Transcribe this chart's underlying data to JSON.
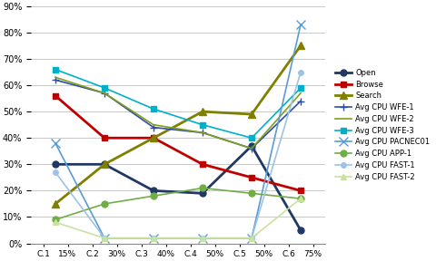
{
  "x_labels": [
    "C.1",
    "15%",
    "C.2",
    "30%",
    "C.3",
    "40%",
    "C.4",
    "50%",
    "C.5",
    "50%",
    "C.6",
    "75%"
  ],
  "x_positions": [
    0,
    1,
    2,
    3,
    4,
    5,
    6,
    7,
    8,
    9,
    10,
    11
  ],
  "data_positions": [
    0.5,
    2.5,
    4.5,
    6.5,
    8.5,
    10.5
  ],
  "series": {
    "Open": {
      "values": [
        0.3,
        0.3,
        0.2,
        0.19,
        0.37,
        0.05
      ],
      "color": "#1F3864",
      "marker": "o",
      "linewidth": 2.0,
      "markersize": 5
    },
    "Browse": {
      "values": [
        0.56,
        0.4,
        0.4,
        0.3,
        0.25,
        0.2
      ],
      "color": "#C00000",
      "marker": "s",
      "linewidth": 2.0,
      "markersize": 5
    },
    "Search": {
      "values": [
        0.15,
        0.3,
        0.4,
        0.5,
        0.49,
        0.75
      ],
      "color": "#7F7F00",
      "marker": "^",
      "linewidth": 2.0,
      "markersize": 6
    },
    "Avg CPU WFE-1": {
      "values": [
        0.62,
        0.57,
        0.44,
        0.42,
        0.36,
        0.54
      ],
      "color": "#2E4DA6",
      "marker": "+",
      "linewidth": 1.2,
      "markersize": 6
    },
    "Avg CPU WFE-2": {
      "values": [
        0.63,
        0.57,
        0.45,
        0.42,
        0.36,
        0.57
      ],
      "color": "#7F9F1C",
      "marker": null,
      "linewidth": 1.2,
      "markersize": 0
    },
    "Avg CPU WFE-3": {
      "values": [
        0.66,
        0.59,
        0.51,
        0.45,
        0.4,
        0.59
      ],
      "color": "#00B0C8",
      "marker": "s",
      "linewidth": 1.2,
      "markersize": 5
    },
    "Avg CPU PACNEC01": {
      "values": [
        0.38,
        0.02,
        0.02,
        0.02,
        0.02,
        0.83
      ],
      "color": "#5B9BD5",
      "marker": "x",
      "linewidth": 1.2,
      "markersize": 7
    },
    "Avg CPU APP-1": {
      "values": [
        0.09,
        0.15,
        0.18,
        0.21,
        0.19,
        0.17
      ],
      "color": "#70AD47",
      "marker": "o",
      "linewidth": 1.2,
      "markersize": 5
    },
    "Avg CPU FAST-1": {
      "values": [
        0.27,
        0.02,
        0.02,
        0.02,
        0.02,
        0.65
      ],
      "color": "#9DC3E6",
      "marker": "o",
      "linewidth": 1.2,
      "markersize": 4
    },
    "Avg CPU FAST-2": {
      "values": [
        0.08,
        0.02,
        0.02,
        0.02,
        0.02,
        0.17
      ],
      "color": "#C9E2A1",
      "marker": "^",
      "linewidth": 1.2,
      "markersize": 4
    }
  },
  "ylim": [
    0,
    0.9
  ],
  "yticks": [
    0.0,
    0.1,
    0.2,
    0.3,
    0.4,
    0.5,
    0.6,
    0.7,
    0.8,
    0.9
  ],
  "bg_color": "#FFFFFF",
  "grid_color": "#C8C8C8"
}
